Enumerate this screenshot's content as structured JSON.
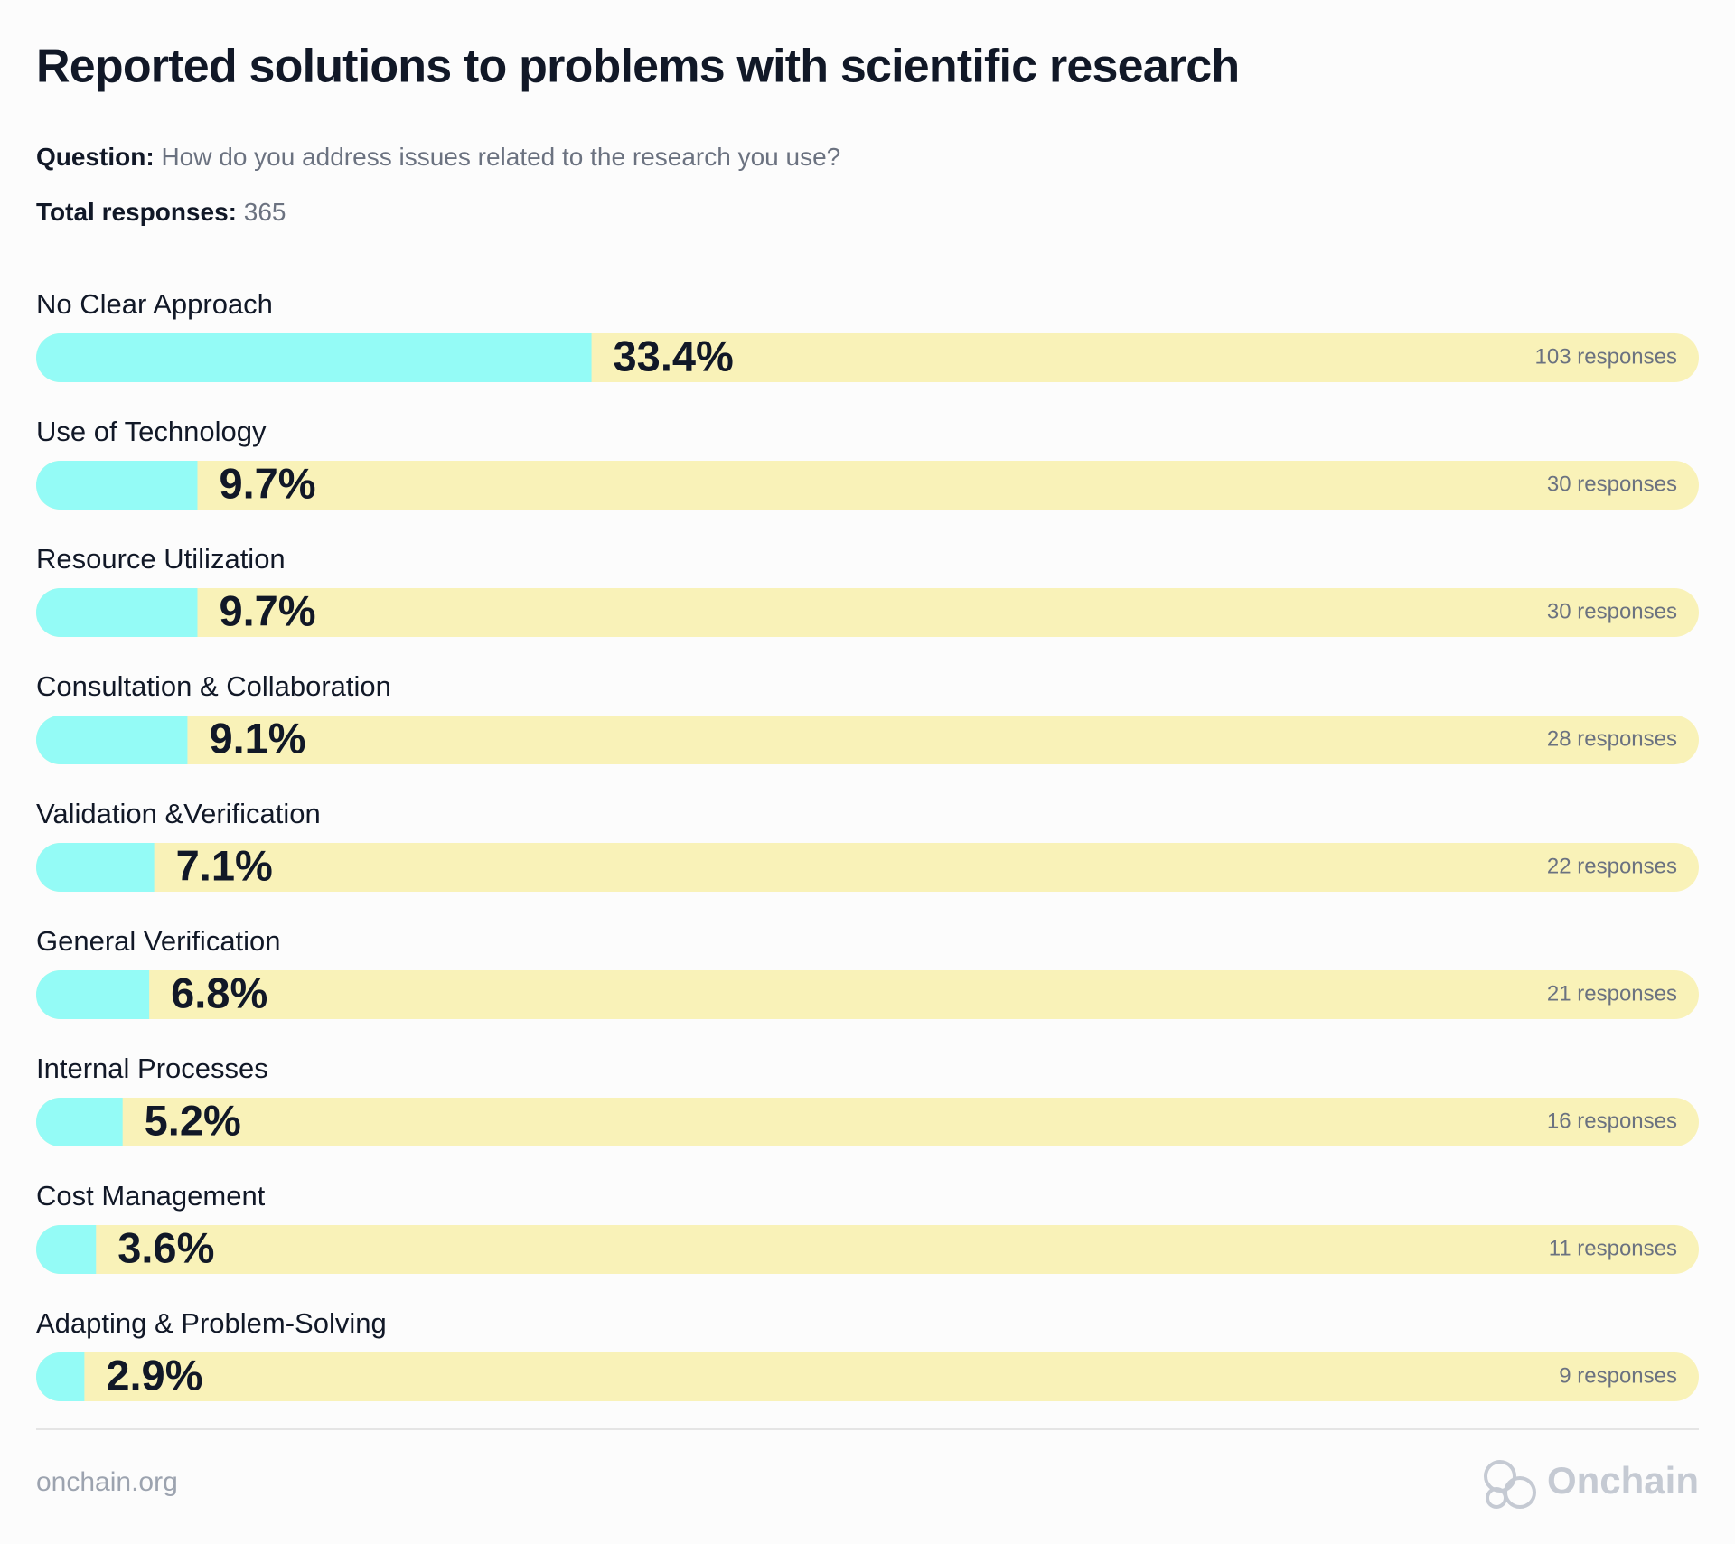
{
  "chart_data": {
    "type": "bar",
    "orientation": "horizontal",
    "title": "Reported solutions to problems with scientific research",
    "question_label": "Question:",
    "question": "How do you address issues related to the research you use?",
    "total_label": "Total responses:",
    "total": 365,
    "categories": [
      "No Clear Approach",
      "Use of Technology",
      "Resource Utilization",
      "Consultation & Collaboration",
      "Validation &Verification",
      "General Verification",
      "Internal Processes",
      "Cost Management",
      "Adapting & Problem-Solving"
    ],
    "values": [
      33.4,
      9.7,
      9.7,
      9.1,
      7.1,
      6.8,
      5.2,
      3.6,
      2.9
    ],
    "value_labels": [
      "33.4%",
      "9.7%",
      "9.7%",
      "9.1%",
      "7.1%",
      "6.8%",
      "5.2%",
      "3.6%",
      "2.9%"
    ],
    "responses": [
      103,
      30,
      30,
      28,
      22,
      21,
      16,
      11,
      9
    ],
    "response_labels": [
      "103 responses",
      "30 responses",
      "30 responses",
      "28 responses",
      "22 responses",
      "21 responses",
      "16 responses",
      "11 responses",
      "9 responses"
    ],
    "xlim": [
      0,
      100
    ],
    "color": "#94fbf6",
    "track_color": "#f9f2b8"
  },
  "footer": {
    "site": "onchain.org",
    "brand": "Onchain"
  }
}
